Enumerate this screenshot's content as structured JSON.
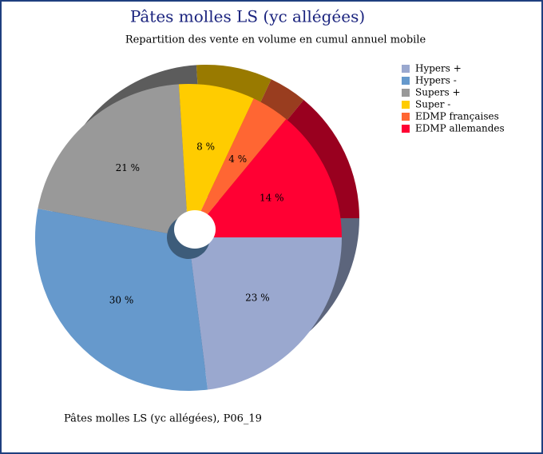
{
  "chart_data": {
    "type": "pie",
    "title": "Pâtes molles LS (yc allégées)",
    "subtitle": "Repartition des vente en volume en cumul annuel mobile",
    "caption": "Pâtes molles LS (yc allégées), P06_19",
    "categories": [
      "Hypers +",
      "Hypers -",
      "Supers +",
      "Super -",
      "EDMP françaises",
      "EDMP allemandes"
    ],
    "values": [
      23,
      30,
      21,
      8,
      4,
      14
    ],
    "value_labels": [
      "23 %",
      "30 %",
      "21 %",
      "8 %",
      "4 %",
      "14 %"
    ],
    "colors": [
      "#9aa8cf",
      "#6699cc",
      "#999999",
      "#ffcc00",
      "#ff6633",
      "#ff0033"
    ],
    "legend": "right"
  }
}
